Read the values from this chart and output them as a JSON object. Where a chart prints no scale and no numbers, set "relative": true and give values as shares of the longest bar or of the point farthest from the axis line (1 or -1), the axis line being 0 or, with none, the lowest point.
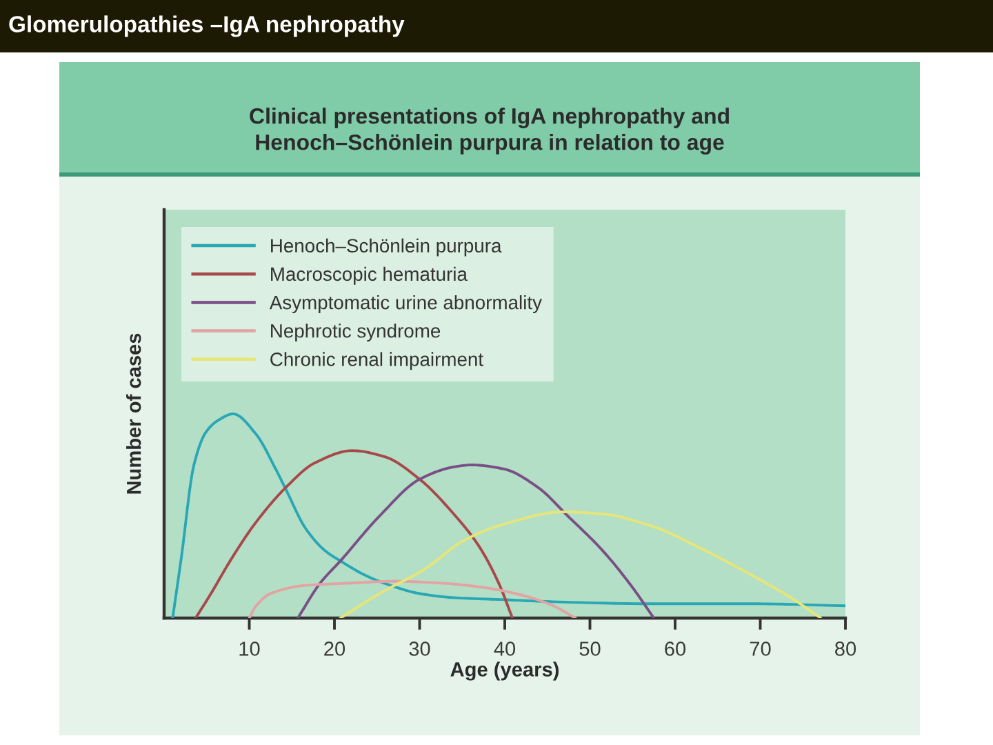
{
  "chart_data": {
    "type": "line",
    "title": "Glomerulopathies –IgA nephropathy",
    "subtitle": "Clinical presentations of IgA nephropathy and\nHenoch–Schönlein purpura in relation to age",
    "xlabel": "Age (years)",
    "ylabel": "Number of cases",
    "relative": true,
    "xlim": [
      0,
      80
    ],
    "xticks": [
      10,
      20,
      30,
      40,
      50,
      60,
      70,
      80
    ],
    "legend": "top left",
    "line_style": "solid",
    "series": [
      {
        "name": "Henoch–Schönlein purpura",
        "color": "#2aa7b5",
        "x": [
          1.0,
          2.0,
          3.5,
          4.9,
          6.4,
          8.1,
          10.8,
          13.1,
          14.3,
          16.6,
          18.9,
          20.7,
          23.6,
          25.9,
          30.0,
          34.0,
          39.9,
          45.7,
          57.3,
          69.0,
          80.0
        ],
        "values": [
          0,
          0.29,
          0.75,
          0.91,
          0.97,
          1.0,
          0.9,
          0.73,
          0.63,
          0.44,
          0.33,
          0.28,
          0.21,
          0.17,
          0.12,
          0.1,
          0.09,
          0.08,
          0.07,
          0.07,
          0.06
        ]
      },
      {
        "name": "Macroscopic hematuria",
        "color": "#a8484a",
        "x": [
          3.7,
          5.5,
          7.9,
          10.8,
          14.3,
          17.7,
          22.1,
          25.9,
          30.0,
          34.0,
          37.0,
          39.3,
          40.9
        ],
        "values": [
          0,
          0.12,
          0.29,
          0.47,
          0.64,
          0.76,
          0.82,
          0.79,
          0.68,
          0.51,
          0.35,
          0.17,
          0
        ]
      },
      {
        "name": "Asymptomatic urine abnormality",
        "color": "#7a4f86",
        "x": [
          15.7,
          18.3,
          20.7,
          25.3,
          30.0,
          34.0,
          36.1,
          39.9,
          43.9,
          47.4,
          51.5,
          55.0,
          57.5
        ],
        "values": [
          0,
          0.17,
          0.28,
          0.5,
          0.68,
          0.74,
          0.75,
          0.73,
          0.64,
          0.5,
          0.33,
          0.15,
          0
        ]
      },
      {
        "name": "Nephrotic syndrome",
        "color": "#e3a3a3",
        "x": [
          10.0,
          10.8,
          12.5,
          16.6,
          21.2,
          27.1,
          32.9,
          37.5,
          42.2,
          45.7,
          48.3
        ],
        "values": [
          0,
          0.06,
          0.12,
          0.16,
          0.17,
          0.18,
          0.17,
          0.15,
          0.11,
          0.06,
          0
        ]
      },
      {
        "name": "Chronic renal impairment",
        "color": "#e6e57a",
        "x": [
          20.7,
          25.3,
          30.6,
          35.2,
          39.9,
          46.8,
          51.5,
          57.3,
          63.1,
          69.0,
          73.6,
          77.1
        ],
        "values": [
          0,
          0.12,
          0.24,
          0.38,
          0.46,
          0.52,
          0.51,
          0.45,
          0.34,
          0.21,
          0.1,
          0
        ]
      }
    ]
  }
}
